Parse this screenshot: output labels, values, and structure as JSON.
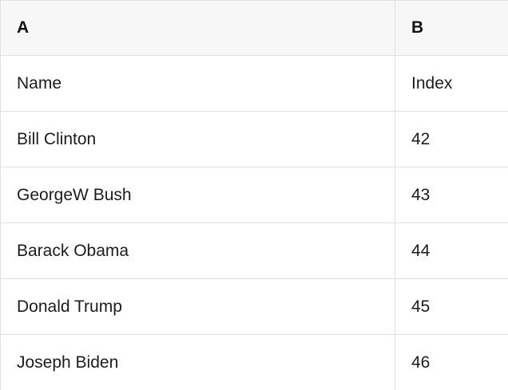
{
  "table": {
    "columns": [
      {
        "label": "A"
      },
      {
        "label": "B"
      }
    ],
    "rows": [
      {
        "a": "Name",
        "b": "Index"
      },
      {
        "a": "Bill Clinton",
        "b": "42"
      },
      {
        "a": "GeorgeW Bush",
        "b": "43"
      },
      {
        "a": "Barack Obama",
        "b": "44"
      },
      {
        "a": "Donald Trump",
        "b": "45"
      },
      {
        "a": "Joseph Biden",
        "b": "46"
      }
    ],
    "colors": {
      "header_bg": "#f7f7f7",
      "row_bg": "#ffffff",
      "border": "#e0e0e0",
      "text": "#1c1c1c"
    }
  }
}
